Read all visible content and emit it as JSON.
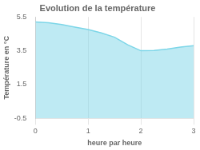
{
  "chart_data": {
    "type": "area",
    "title": "Evolution de la température",
    "xlabel": "heure par heure",
    "ylabel": "Température en °C",
    "x": [
      0,
      0.25,
      0.5,
      0.75,
      1.0,
      1.25,
      1.5,
      1.75,
      2.0,
      2.25,
      2.5,
      2.75,
      3.0
    ],
    "values": [
      5.2,
      5.15,
      5.05,
      4.9,
      4.75,
      4.55,
      4.3,
      3.85,
      3.5,
      3.52,
      3.6,
      3.72,
      3.8
    ],
    "xlim": [
      0,
      3
    ],
    "ylim": [
      -0.5,
      5.5
    ],
    "xticks": [
      0,
      1,
      2,
      3
    ],
    "yticks": [
      -0.5,
      1.5,
      3.5,
      5.5
    ],
    "color": "#7dd6e8",
    "grid": "x"
  }
}
